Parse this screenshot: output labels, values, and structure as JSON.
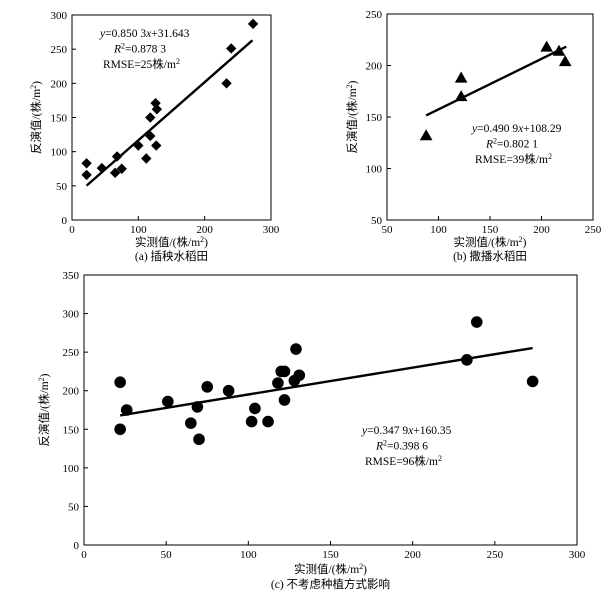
{
  "chart_data": [
    {
      "type": "scatter",
      "caption": "(a) 插秧水稻田",
      "xlabel": "实测值/(株/m²)",
      "ylabel": "反演值/(株/m²)",
      "xlim": [
        0,
        300
      ],
      "ylim": [
        0,
        300
      ],
      "xticks": [
        0,
        100,
        200,
        300
      ],
      "yticks": [
        0,
        50,
        100,
        150,
        200,
        250,
        300
      ],
      "grid": false,
      "marker": "diamond",
      "annotation": {
        "equation": "y=0.850 3x+31.643",
        "r2": "R²=0.878 3",
        "rmse": "RMSE=25株/m²"
      },
      "fit": {
        "slope": 0.8503,
        "intercept": 31.643,
        "x_range": [
          22,
          272
        ]
      },
      "points": [
        [
          22,
          83
        ],
        [
          22,
          66
        ],
        [
          45,
          76
        ],
        [
          65,
          69
        ],
        [
          68,
          93
        ],
        [
          75,
          75
        ],
        [
          100,
          109
        ],
        [
          112,
          90
        ],
        [
          118,
          123
        ],
        [
          118,
          150
        ],
        [
          126,
          171
        ],
        [
          128,
          162
        ],
        [
          127,
          109
        ],
        [
          233,
          200
        ],
        [
          240,
          251
        ],
        [
          273,
          287
        ]
      ]
    },
    {
      "type": "scatter",
      "caption": "(b) 撒播水稻田",
      "xlabel": "实测值/(株/m²)",
      "ylabel": "反演值/(株/m²)",
      "xlim": [
        50,
        250
      ],
      "ylim": [
        50,
        250
      ],
      "xticks": [
        50,
        100,
        150,
        200,
        250
      ],
      "yticks": [
        50,
        100,
        150,
        200,
        250
      ],
      "grid": false,
      "marker": "triangle",
      "annotation": {
        "equation": "y=0.490 9x+108.29",
        "r2": "R²=0.802 1",
        "rmse": "RMSE=39株/m²"
      },
      "fit": {
        "slope": 0.4909,
        "intercept": 108.29,
        "x_range": [
          88,
          224
        ]
      },
      "points": [
        [
          88,
          132
        ],
        [
          122,
          188
        ],
        [
          122,
          170
        ],
        [
          205,
          218
        ],
        [
          217,
          214
        ],
        [
          223,
          204
        ]
      ]
    },
    {
      "type": "scatter",
      "caption": "(c) 不考虑种植方式影响",
      "xlabel": "实测值/(株/m²)",
      "ylabel": "反演值/(株/m²)",
      "xlim": [
        0,
        300
      ],
      "ylim": [
        0,
        350
      ],
      "xticks": [
        0,
        50,
        100,
        150,
        200,
        250,
        300
      ],
      "yticks": [
        0,
        50,
        100,
        150,
        200,
        250,
        300,
        350
      ],
      "grid": false,
      "marker": "circle",
      "annotation": {
        "equation": "y=0.347 9x+160.35",
        "r2": "R²=0.398 6",
        "rmse": "RMSE=96株/m²"
      },
      "fit": {
        "slope": 0.3479,
        "intercept": 160.35,
        "x_range": [
          22,
          273
        ]
      },
      "points": [
        [
          22,
          211
        ],
        [
          22,
          150
        ],
        [
          26,
          175
        ],
        [
          51,
          186
        ],
        [
          65,
          158
        ],
        [
          69,
          179
        ],
        [
          70,
          137
        ],
        [
          75,
          205
        ],
        [
          88,
          200
        ],
        [
          102,
          160
        ],
        [
          104,
          177
        ],
        [
          112,
          160
        ],
        [
          118,
          210
        ],
        [
          120,
          225
        ],
        [
          122,
          225
        ],
        [
          122,
          188
        ],
        [
          128,
          213
        ],
        [
          129,
          254
        ],
        [
          131,
          220
        ],
        [
          233,
          240
        ],
        [
          239,
          289
        ],
        [
          273,
          212
        ]
      ]
    }
  ]
}
